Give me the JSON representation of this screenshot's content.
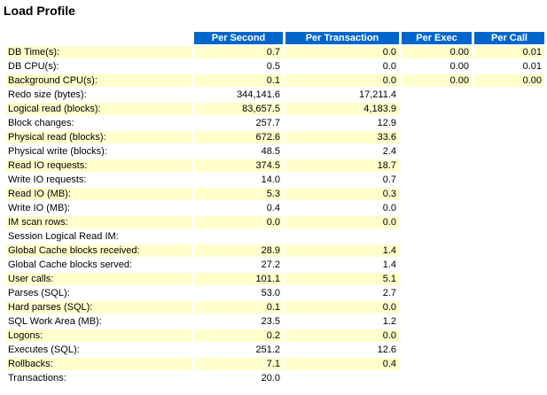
{
  "title": "Load Profile",
  "columns": [
    "",
    "Per Second",
    "Per Transaction",
    "Per Exec",
    "Per Call"
  ],
  "rows": [
    {
      "label": "DB Time(s):",
      "per_second": "0.7",
      "per_transaction": "0.0",
      "per_exec": "0.00",
      "per_call": "0.01"
    },
    {
      "label": "DB CPU(s):",
      "per_second": "0.5",
      "per_transaction": "0.0",
      "per_exec": "0.00",
      "per_call": "0.01"
    },
    {
      "label": "Background CPU(s):",
      "per_second": "0.1",
      "per_transaction": "0.0",
      "per_exec": "0.00",
      "per_call": "0.00"
    },
    {
      "label": "Redo size (bytes):",
      "per_second": "344,141.6",
      "per_transaction": "17,211.4",
      "per_exec": "",
      "per_call": ""
    },
    {
      "label": "Logical read (blocks):",
      "per_second": "83,657.5",
      "per_transaction": "4,183.9",
      "per_exec": "",
      "per_call": ""
    },
    {
      "label": "Block changes:",
      "per_second": "257.7",
      "per_transaction": "12.9",
      "per_exec": "",
      "per_call": ""
    },
    {
      "label": "Physical read (blocks):",
      "per_second": "672.6",
      "per_transaction": "33.6",
      "per_exec": "",
      "per_call": ""
    },
    {
      "label": "Physical write (blocks):",
      "per_second": "48.5",
      "per_transaction": "2.4",
      "per_exec": "",
      "per_call": ""
    },
    {
      "label": "Read IO requests:",
      "per_second": "374.5",
      "per_transaction": "18.7",
      "per_exec": "",
      "per_call": ""
    },
    {
      "label": "Write IO requests:",
      "per_second": "14.0",
      "per_transaction": "0.7",
      "per_exec": "",
      "per_call": ""
    },
    {
      "label": "Read IO (MB):",
      "per_second": "5.3",
      "per_transaction": "0.3",
      "per_exec": "",
      "per_call": ""
    },
    {
      "label": "Write IO (MB):",
      "per_second": "0.4",
      "per_transaction": "0.0",
      "per_exec": "",
      "per_call": ""
    },
    {
      "label": "IM scan rows:",
      "per_second": "0.0",
      "per_transaction": "0.0",
      "per_exec": "",
      "per_call": ""
    },
    {
      "label": "Session Logical Read IM:",
      "per_second": "",
      "per_transaction": "",
      "per_exec": "",
      "per_call": ""
    },
    {
      "label": "Global Cache blocks received:",
      "per_second": "28.9",
      "per_transaction": "1.4",
      "per_exec": "",
      "per_call": ""
    },
    {
      "label": "Global Cache blocks served:",
      "per_second": "27.2",
      "per_transaction": "1.4",
      "per_exec": "",
      "per_call": ""
    },
    {
      "label": "User calls:",
      "per_second": "101.1",
      "per_transaction": "5.1",
      "per_exec": "",
      "per_call": ""
    },
    {
      "label": "Parses (SQL):",
      "per_second": "53.0",
      "per_transaction": "2.7",
      "per_exec": "",
      "per_call": ""
    },
    {
      "label": "Hard parses (SQL):",
      "per_second": "0.1",
      "per_transaction": "0.0",
      "per_exec": "",
      "per_call": ""
    },
    {
      "label": "SQL Work Area (MB):",
      "per_second": "23.5",
      "per_transaction": "1.2",
      "per_exec": "",
      "per_call": ""
    },
    {
      "label": "Logons:",
      "per_second": "0.2",
      "per_transaction": "0.0",
      "per_exec": "",
      "per_call": ""
    },
    {
      "label": "Executes (SQL):",
      "per_second": "251.2",
      "per_transaction": "12.6",
      "per_exec": "",
      "per_call": ""
    },
    {
      "label": "Rollbacks:",
      "per_second": "7.1",
      "per_transaction": "0.4",
      "per_exec": "",
      "per_call": ""
    },
    {
      "label": "Transactions:",
      "per_second": "20.0",
      "per_transaction": "",
      "per_exec": "",
      "per_call": ""
    }
  ],
  "colors": {
    "header_bg": "#0066cc",
    "header_text": "#ffffff",
    "band": "#ffffcc"
  }
}
